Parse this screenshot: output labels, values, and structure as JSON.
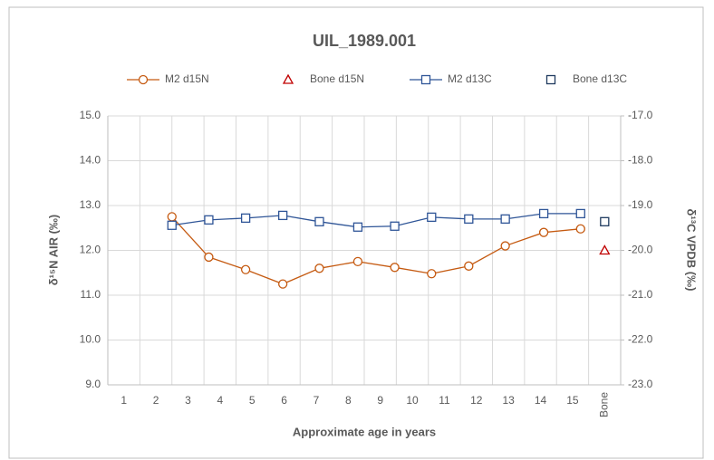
{
  "chart_data": {
    "type": "line",
    "title": "UIL_1989.001",
    "xlabel": "Approximate age in years",
    "ylabel": "δ¹⁵N AIR (‰)",
    "y2label": "δ¹³C VPDB (‰)",
    "xlim": [
      0.5,
      16.5
    ],
    "xticks": [
      1,
      2,
      3,
      4,
      5,
      6,
      7,
      8,
      9,
      10,
      11,
      12,
      13,
      14,
      15,
      {
        "value": 16,
        "label": "Bone"
      }
    ],
    "ylim": [
      9,
      15
    ],
    "yticks": [
      {
        "value": 9,
        "label": "9.0"
      },
      {
        "value": 10,
        "label": "10.0"
      },
      {
        "value": 11,
        "label": "11.0"
      },
      {
        "value": 12,
        "label": "12.0"
      },
      {
        "value": 13,
        "label": "13.0"
      },
      {
        "value": 14,
        "label": "14.0"
      },
      {
        "value": 15,
        "label": "15.0"
      }
    ],
    "y2lim": [
      -23,
      -17
    ],
    "y2ticks": [
      {
        "value": -23,
        "label": "-23.0"
      },
      {
        "value": -22,
        "label": "-22.0"
      },
      {
        "value": -21,
        "label": "-21.0"
      },
      {
        "value": -20,
        "label": "-20.0"
      },
      {
        "value": -19,
        "label": "-19.0"
      },
      {
        "value": -18,
        "label": "-18.0"
      },
      {
        "value": -17,
        "label": "-17.0"
      }
    ],
    "grid": true,
    "legend": "top",
    "series": [
      {
        "name": "M2 d15N",
        "color": "#c55a11",
        "marker": "circle",
        "line": true,
        "x": [
          2.5,
          3.65,
          4.8,
          5.96,
          7.1,
          8.3,
          9.45,
          10.6,
          11.76,
          12.9,
          14.1,
          15.25
        ],
        "values": [
          12.75,
          11.85,
          11.57,
          11.25,
          11.6,
          11.75,
          11.62,
          11.48,
          11.65,
          12.1,
          12.4,
          12.48
        ]
      },
      {
        "name": "Bone d15N",
        "color": "#c00000",
        "marker": "triangle",
        "line": false,
        "x": [
          16
        ],
        "values": [
          12.0
        ]
      },
      {
        "name": "M2 d13C",
        "color": "#2f5597",
        "marker": "square",
        "line": true,
        "axis": "y2",
        "x": [
          2.5,
          3.65,
          4.8,
          5.96,
          7.1,
          8.3,
          9.45,
          10.6,
          11.76,
          12.9,
          14.1,
          15.25
        ],
        "values": [
          -19.44,
          -19.32,
          -19.28,
          -19.22,
          -19.36,
          -19.48,
          -19.46,
          -19.26,
          -19.3,
          -19.3,
          -19.18,
          -19.18
        ]
      },
      {
        "name": "Bone d13C",
        "color": "#1f3a5f",
        "marker": "square",
        "line": false,
        "axis": "y2",
        "x": [
          16
        ],
        "values": [
          -19.36
        ]
      }
    ]
  }
}
